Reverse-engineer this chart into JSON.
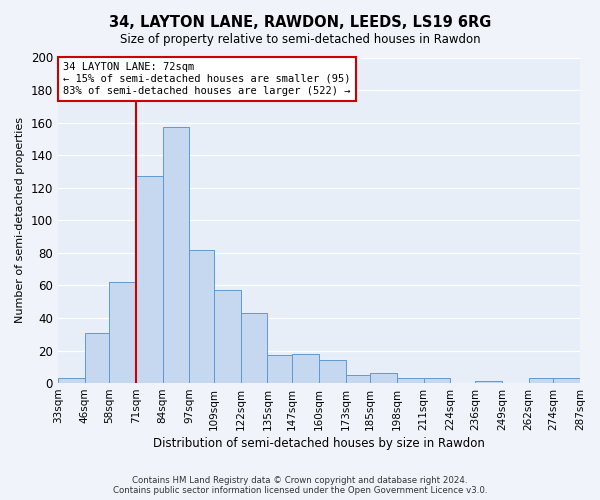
{
  "title": "34, LAYTON LANE, RAWDON, LEEDS, LS19 6RG",
  "subtitle": "Size of property relative to semi-detached houses in Rawdon",
  "xlabel": "Distribution of semi-detached houses by size in Rawdon",
  "ylabel": "Number of semi-detached properties",
  "bin_edges": [
    33,
    46,
    58,
    71,
    84,
    97,
    109,
    122,
    135,
    147,
    160,
    173,
    185,
    198,
    211,
    224,
    236,
    249,
    262,
    274,
    287
  ],
  "bin_labels": [
    "33sqm",
    "46sqm",
    "58sqm",
    "71sqm",
    "84sqm",
    "97sqm",
    "109sqm",
    "122sqm",
    "135sqm",
    "147sqm",
    "160sqm",
    "173sqm",
    "185sqm",
    "198sqm",
    "211sqm",
    "224sqm",
    "236sqm",
    "249sqm",
    "262sqm",
    "274sqm",
    "287sqm"
  ],
  "bar_heights": [
    3,
    31,
    62,
    127,
    157,
    82,
    57,
    43,
    17,
    18,
    14,
    5,
    6,
    3,
    3,
    0,
    1,
    0,
    3,
    3
  ],
  "bar_color": "#c5d8f0",
  "bar_edge_color": "#5b9bd5",
  "vline_x": 71,
  "vline_color": "#cc0000",
  "annotation_title": "34 LAYTON LANE: 72sqm",
  "annotation_line1": "← 15% of semi-detached houses are smaller (95)",
  "annotation_line2": "83% of semi-detached houses are larger (522) →",
  "annotation_box_color": "#cc0000",
  "ylim": [
    0,
    200
  ],
  "yticks": [
    0,
    20,
    40,
    60,
    80,
    100,
    120,
    140,
    160,
    180,
    200
  ],
  "fig_bg_color": "#f0f4fa",
  "plot_bg_color": "#e8eef7",
  "grid_color": "#ffffff",
  "footer_line1": "Contains HM Land Registry data © Crown copyright and database right 2024.",
  "footer_line2": "Contains public sector information licensed under the Open Government Licence v3.0."
}
